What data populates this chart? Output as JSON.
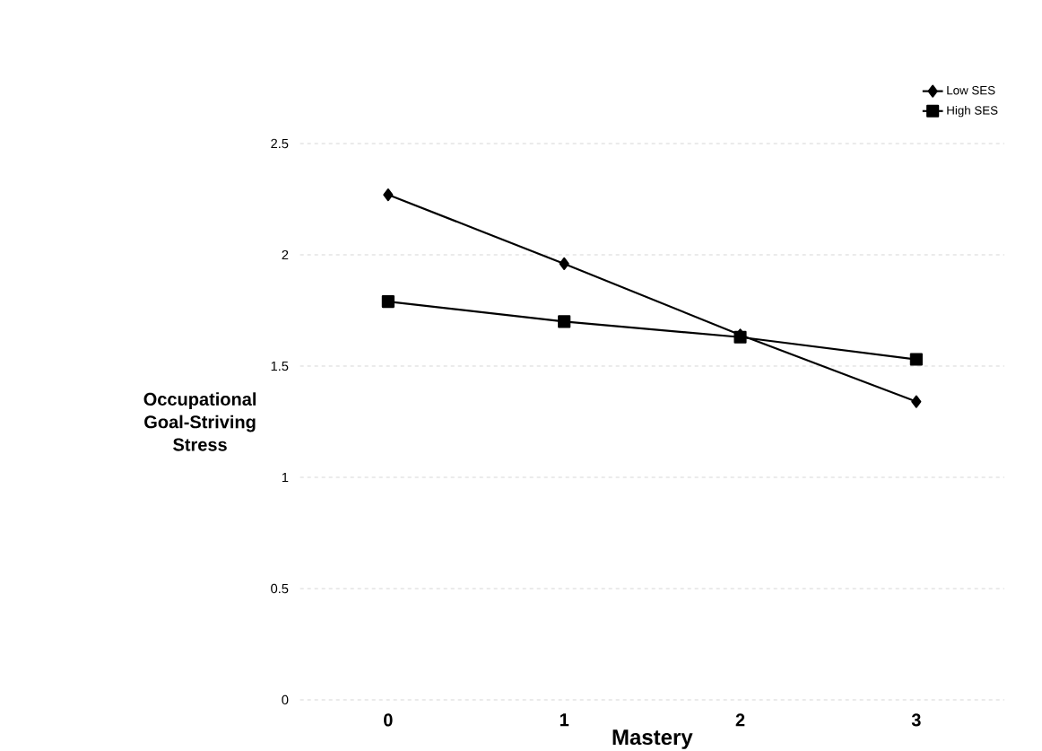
{
  "chart_data": {
    "type": "line",
    "xlabel": "Mastery",
    "ylabel": "Occupational Goal-Striving Stress",
    "categories": [
      "0",
      "1",
      "2",
      "3"
    ],
    "series": [
      {
        "name": "Low SES",
        "color": "#000000",
        "marker": "diamond",
        "values": [
          2.27,
          1.96,
          1.64,
          1.34
        ]
      },
      {
        "name": "High SES",
        "color": "#000000",
        "marker": "square",
        "values": [
          1.79,
          1.7,
          1.63,
          1.53
        ]
      }
    ],
    "ylim": [
      0,
      2.5
    ],
    "yticks": [
      0,
      0.5,
      1,
      1.5,
      2,
      2.5
    ],
    "grid": "y",
    "legend": "top right"
  }
}
